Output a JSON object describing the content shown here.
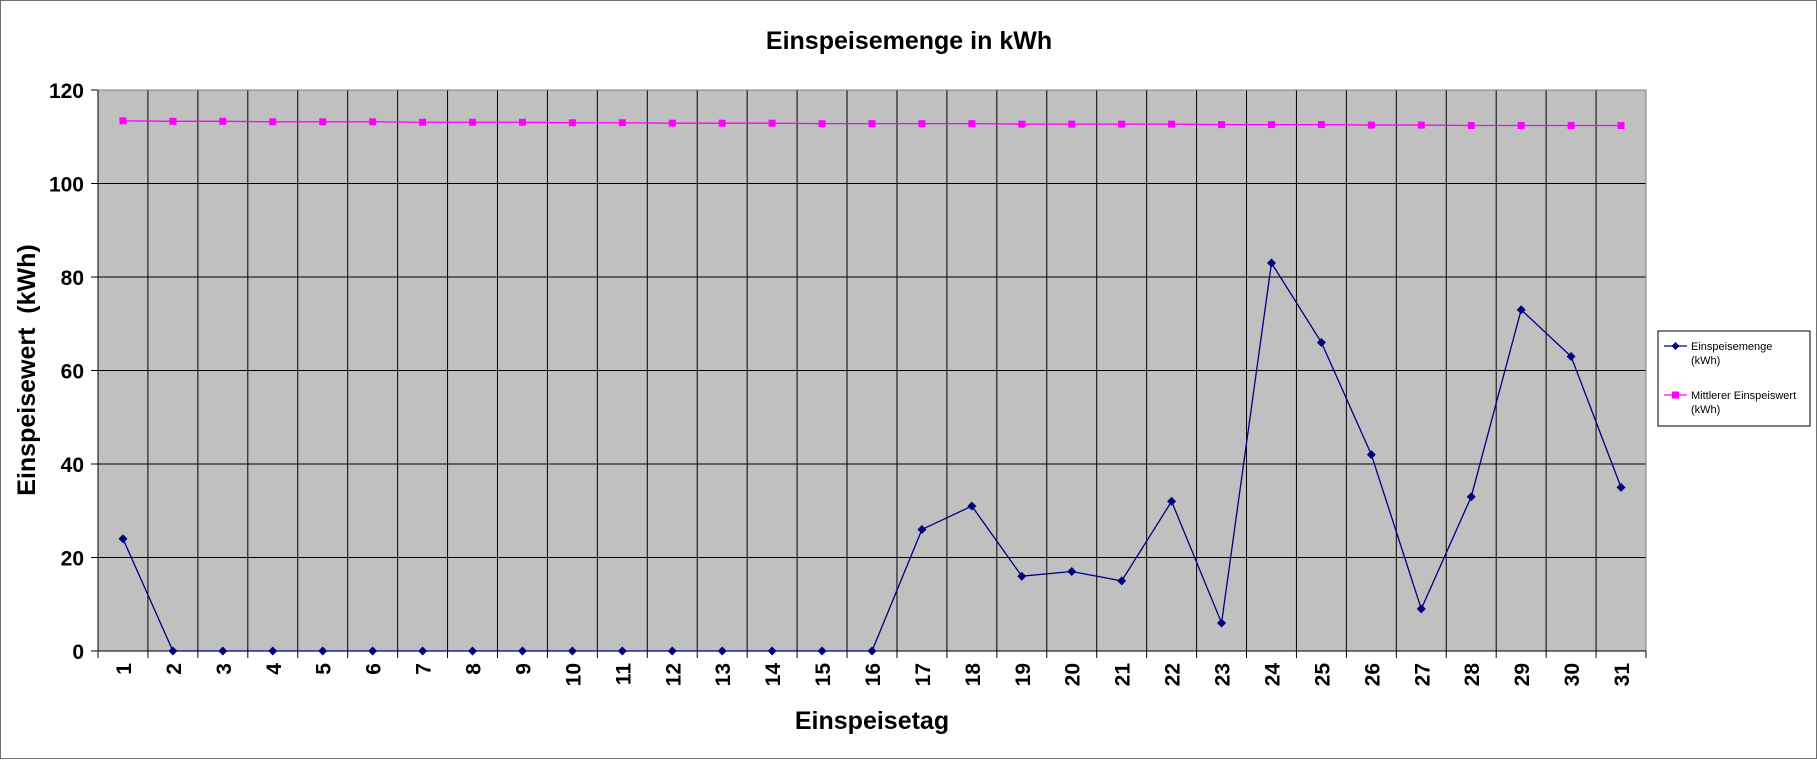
{
  "chart_data": {
    "type": "line",
    "title": "Einspeisemenge in kWh",
    "xlabel": "Einspeisetag",
    "ylabel": "Einspeisewert  (kWh)",
    "ylim": [
      0,
      120
    ],
    "yticks": [
      0,
      20,
      40,
      60,
      80,
      100,
      120
    ],
    "categories": [
      "1",
      "2",
      "3",
      "4",
      "5",
      "6",
      "7",
      "8",
      "9",
      "10",
      "11",
      "12",
      "13",
      "14",
      "15",
      "16",
      "17",
      "18",
      "19",
      "20",
      "21",
      "22",
      "23",
      "24",
      "25",
      "26",
      "27",
      "28",
      "29",
      "30",
      "31"
    ],
    "grid": true,
    "legend_position": "right",
    "colors": {
      "plot_background": "#c0c0c0",
      "gridline": "#000000"
    },
    "series": [
      {
        "name": "Einspeisemenge (kWh)",
        "color": "#000080",
        "marker": "diamond",
        "values": [
          24,
          0,
          0,
          0,
          0,
          0,
          0,
          0,
          0,
          0,
          0,
          0,
          0,
          0,
          0,
          0,
          26,
          31,
          16,
          17,
          15,
          32,
          6,
          83,
          66,
          42,
          9,
          33,
          73,
          63,
          35
        ]
      },
      {
        "name": "Mittlerer Einspeiswert (kWh)",
        "color": "#ff00ff",
        "marker": "square",
        "values": [
          113.4,
          113.3,
          113.3,
          113.2,
          113.2,
          113.2,
          113.1,
          113.1,
          113.1,
          113.0,
          113.0,
          112.9,
          112.9,
          112.9,
          112.8,
          112.8,
          112.8,
          112.8,
          112.7,
          112.7,
          112.7,
          112.7,
          112.6,
          112.6,
          112.6,
          112.5,
          112.5,
          112.4,
          112.4,
          112.4,
          112.4
        ]
      }
    ]
  }
}
